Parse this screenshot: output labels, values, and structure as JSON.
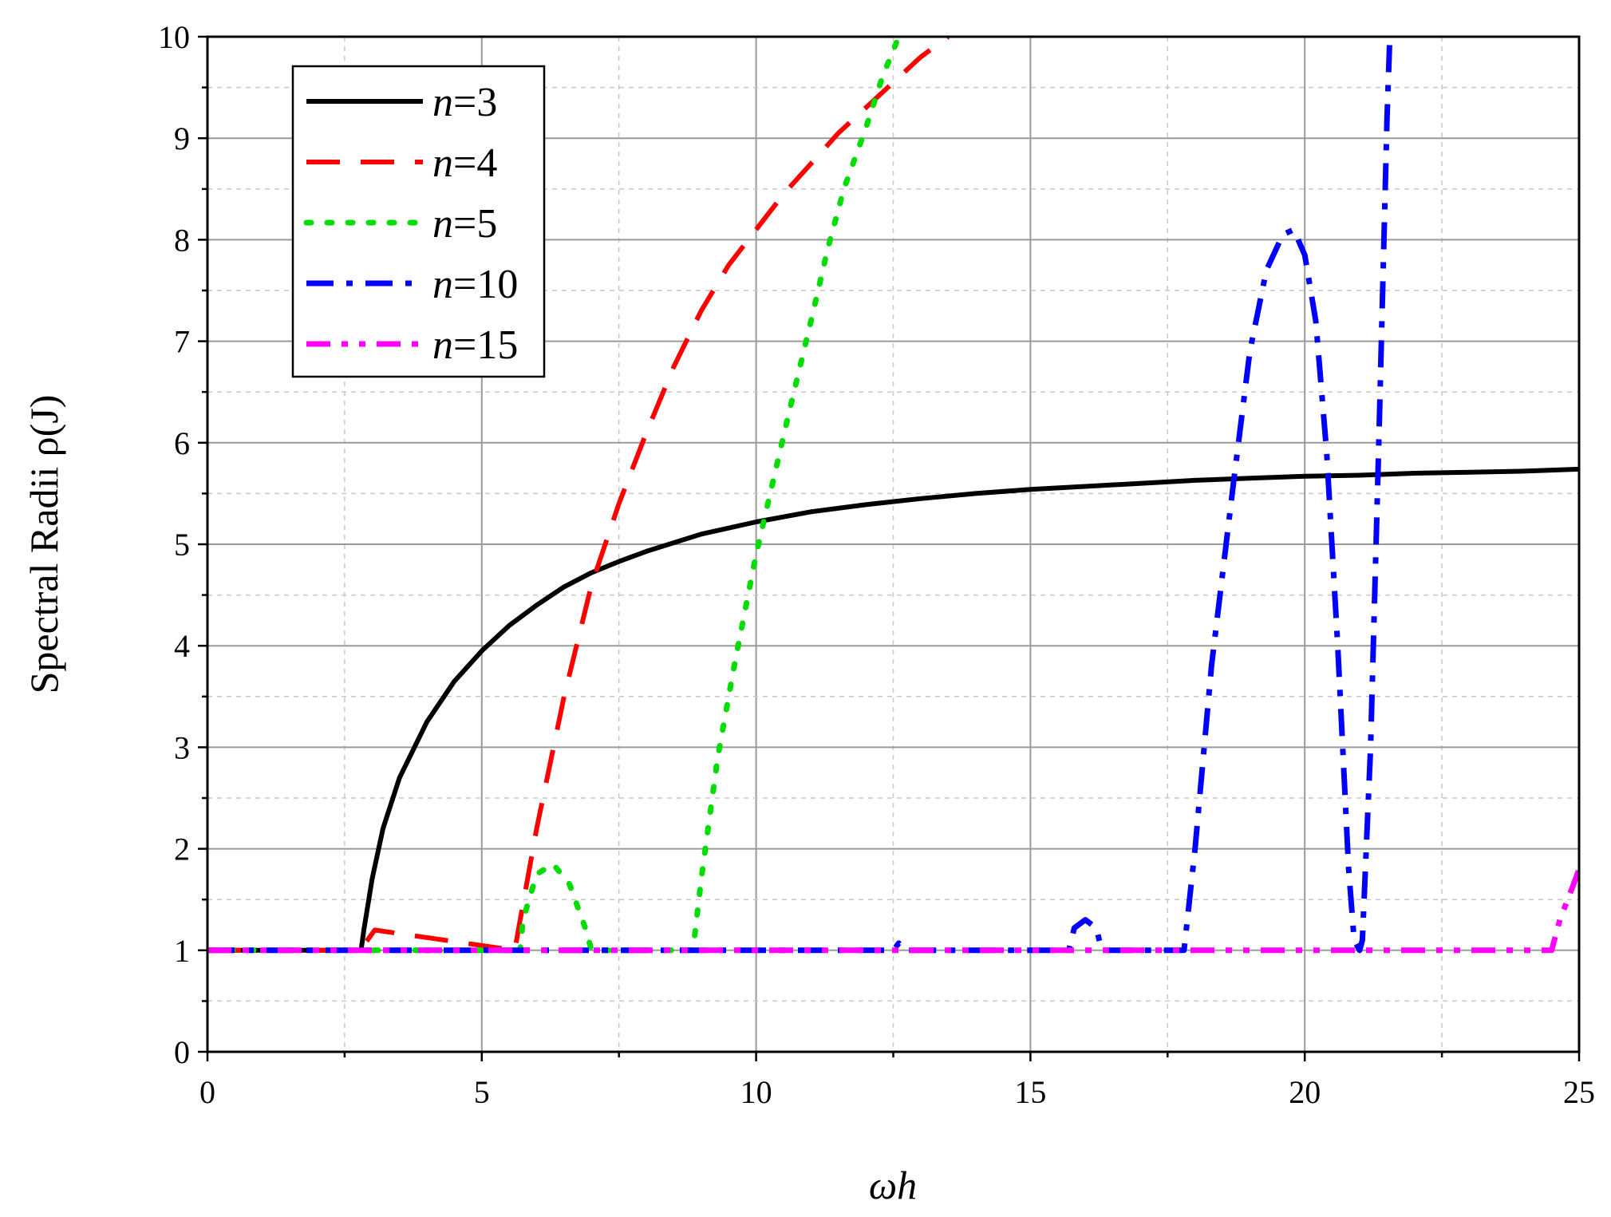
{
  "chart_data": {
    "type": "line",
    "xlabel": "ωh",
    "ylabel": "Spectral Radii ρ(J)",
    "xlim": [
      0,
      25
    ],
    "ylim": [
      0,
      10
    ],
    "xticks": [
      "0",
      "5",
      "10",
      "15",
      "20",
      "25"
    ],
    "yticks": [
      "0",
      "1",
      "2",
      "3",
      "4",
      "5",
      "6",
      "7",
      "8",
      "9",
      "10"
    ],
    "grid": true,
    "legend_position": "top-left",
    "series": [
      {
        "name": "n=3",
        "color": "#000000",
        "style": "solid",
        "points": [
          [
            0,
            1
          ],
          [
            2.8,
            1
          ],
          [
            2.85,
            1.2
          ],
          [
            3.0,
            1.7
          ],
          [
            3.2,
            2.2
          ],
          [
            3.5,
            2.7
          ],
          [
            4.0,
            3.25
          ],
          [
            4.5,
            3.65
          ],
          [
            5.0,
            3.95
          ],
          [
            5.5,
            4.2
          ],
          [
            6.0,
            4.4
          ],
          [
            6.5,
            4.58
          ],
          [
            7.0,
            4.72
          ],
          [
            7.5,
            4.83
          ],
          [
            8.0,
            4.93
          ],
          [
            9.0,
            5.1
          ],
          [
            10.0,
            5.22
          ],
          [
            11.0,
            5.32
          ],
          [
            12.0,
            5.39
          ],
          [
            13.0,
            5.45
          ],
          [
            14.0,
            5.5
          ],
          [
            15.0,
            5.54
          ],
          [
            16.0,
            5.57
          ],
          [
            17.0,
            5.6
          ],
          [
            18.0,
            5.63
          ],
          [
            19.0,
            5.65
          ],
          [
            20.0,
            5.67
          ],
          [
            21.0,
            5.68
          ],
          [
            22.0,
            5.7
          ],
          [
            23.0,
            5.71
          ],
          [
            24.0,
            5.72
          ],
          [
            25.0,
            5.74
          ]
        ]
      },
      {
        "name": "n=4",
        "color": "#ff0000",
        "style": "dashed",
        "points": [
          [
            0,
            1
          ],
          [
            2.7,
            1
          ],
          [
            2.85,
            1.05
          ],
          [
            3.05,
            1.2
          ],
          [
            5.6,
            1
          ],
          [
            5.7,
            1.3
          ],
          [
            6.0,
            2.2
          ],
          [
            6.5,
            3.5
          ],
          [
            7.0,
            4.6
          ],
          [
            7.5,
            5.4
          ],
          [
            8.0,
            6.1
          ],
          [
            8.5,
            6.75
          ],
          [
            9.0,
            7.3
          ],
          [
            9.5,
            7.75
          ],
          [
            10.0,
            8.1
          ],
          [
            10.5,
            8.45
          ],
          [
            11.0,
            8.75
          ],
          [
            11.5,
            9.05
          ],
          [
            12.0,
            9.3
          ],
          [
            12.5,
            9.55
          ],
          [
            13.0,
            9.8
          ],
          [
            13.5,
            10.0
          ]
        ]
      },
      {
        "name": "n=5",
        "color": "#00dd00",
        "style": "dotted",
        "points": [
          [
            0,
            1
          ],
          [
            5.7,
            1
          ],
          [
            5.75,
            1.3
          ],
          [
            6.0,
            1.75
          ],
          [
            6.3,
            1.85
          ],
          [
            6.6,
            1.65
          ],
          [
            6.9,
            1.2
          ],
          [
            7.0,
            1.0
          ],
          [
            8.85,
            1.0
          ],
          [
            9.0,
            1.7
          ],
          [
            9.3,
            2.9
          ],
          [
            9.6,
            3.8
          ],
          [
            10.0,
            4.9
          ],
          [
            10.3,
            5.6
          ],
          [
            10.6,
            6.3
          ],
          [
            11.0,
            7.2
          ],
          [
            11.3,
            7.9
          ],
          [
            11.6,
            8.5
          ],
          [
            12.0,
            9.1
          ],
          [
            12.3,
            9.6
          ],
          [
            12.6,
            10.0
          ]
        ]
      },
      {
        "name": "n=10",
        "color": "#0000ff",
        "style": "dashdot",
        "points": [
          [
            0,
            1
          ],
          [
            12.5,
            1
          ],
          [
            12.6,
            1.07
          ],
          [
            12.7,
            1
          ],
          [
            15.7,
            1
          ],
          [
            15.8,
            1.22
          ],
          [
            16.0,
            1.3
          ],
          [
            16.2,
            1.22
          ],
          [
            16.3,
            1
          ],
          [
            17.8,
            1
          ],
          [
            18.0,
            2.0
          ],
          [
            18.3,
            3.8
          ],
          [
            18.7,
            5.6
          ],
          [
            19.0,
            6.9
          ],
          [
            19.3,
            7.7
          ],
          [
            19.6,
            8.05
          ],
          [
            19.8,
            8.1
          ],
          [
            20.0,
            7.85
          ],
          [
            20.2,
            7.2
          ],
          [
            20.4,
            5.9
          ],
          [
            20.6,
            4.0
          ],
          [
            20.8,
            1.8
          ],
          [
            20.9,
            1.1
          ],
          [
            21.0,
            1.0
          ],
          [
            21.05,
            1.1
          ],
          [
            21.2,
            3.0
          ],
          [
            21.35,
            6.0
          ],
          [
            21.5,
            9.2
          ],
          [
            21.55,
            10.0
          ]
        ]
      },
      {
        "name": "n=15",
        "color": "#ff00ff",
        "style": "dashdotdot",
        "points": [
          [
            0,
            1
          ],
          [
            24.5,
            1
          ],
          [
            24.65,
            1.3
          ],
          [
            24.9,
            1.65
          ],
          [
            25.0,
            1.8
          ]
        ]
      }
    ]
  }
}
